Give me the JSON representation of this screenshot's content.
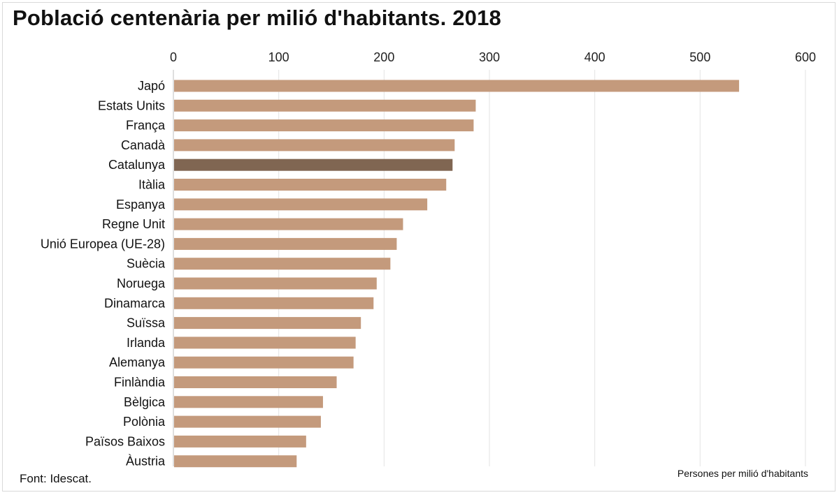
{
  "title": "Població centenària per milió d'habitants. 2018",
  "source": "Font: Idescat.",
  "colors": {
    "bar": "#c49a7c",
    "highlight": "#806652",
    "grid": "#e3e3e3",
    "axis": "#bfbfbf"
  },
  "chart_data": {
    "type": "bar",
    "orientation": "horizontal",
    "title": "Població centenària per milió d'habitants. 2018",
    "xlabel": "Persones per milió d'habitants",
    "ylabel": "",
    "xlim": [
      0,
      600
    ],
    "xticks": [
      0,
      100,
      200,
      300,
      400,
      500,
      600
    ],
    "grid": true,
    "highlight": "Catalunya",
    "categories": [
      "Japó",
      "Estats Units",
      "França",
      "Canadà",
      "Catalunya",
      "Itàlia",
      "Espanya",
      "Regne Unit",
      "Unió Europea (UE-28)",
      "Suècia",
      "Noruega",
      "Dinamarca",
      "Suïssa",
      "Irlanda",
      "Alemanya",
      "Finlàndia",
      "Bèlgica",
      "Polònia",
      "Països Baixos",
      "Àustria"
    ],
    "values": [
      537,
      287,
      285,
      267,
      265,
      259,
      241,
      218,
      212,
      206,
      193,
      190,
      178,
      173,
      171,
      155,
      142,
      140,
      126,
      117
    ]
  }
}
